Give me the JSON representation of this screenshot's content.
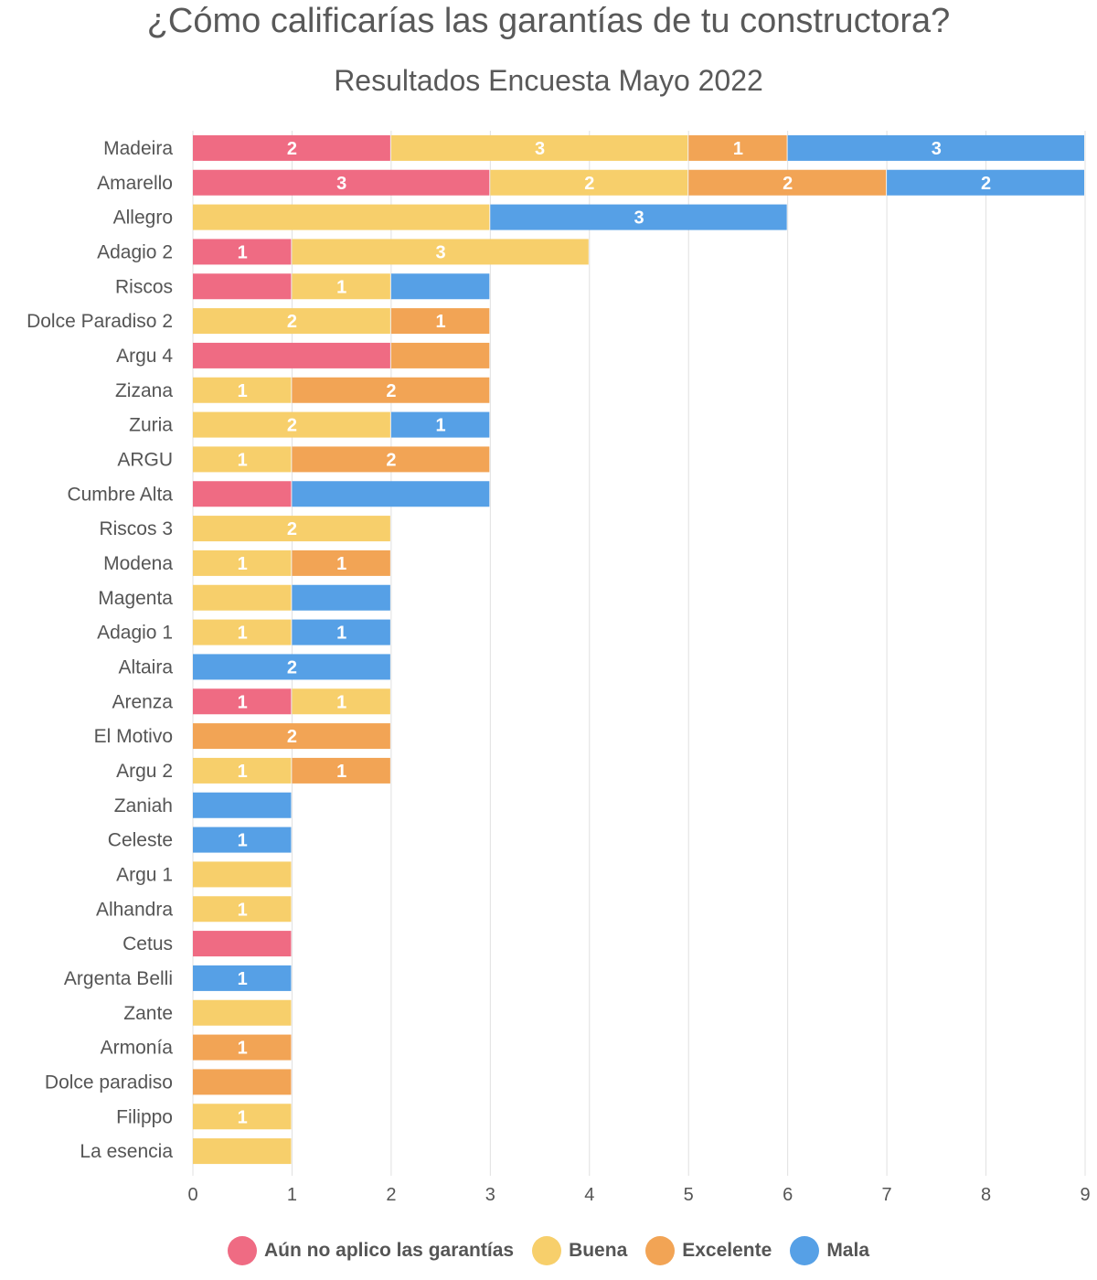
{
  "chart_data": {
    "type": "bar",
    "orientation": "horizontal",
    "stacked": true,
    "title": "¿Cómo calificarías las garantías de tu constructora?",
    "subtitle": "Resultados Encuesta Mayo 2022",
    "xlim": [
      0,
      9
    ],
    "x_ticks": [
      "0",
      "1",
      "2",
      "3",
      "4",
      "5",
      "6",
      "7",
      "8",
      "9"
    ],
    "grid": true,
    "legend_position": "bottom",
    "categories": [
      "Madeira",
      "Amarello",
      "Allegro",
      "Adagio 2",
      "Riscos",
      "Dolce Paradiso 2",
      "Argu 4",
      "Zizana",
      "Zuria",
      "ARGU",
      "Cumbre Alta",
      "Riscos 3",
      "Modena",
      "Magenta",
      "Adagio 1",
      "Altaira",
      "Arenza",
      "El Motivo",
      "Argu 2",
      "Zaniah",
      "Celeste",
      "Argu 1",
      "Alhandra",
      "Cetus",
      "Argenta Belli",
      "Zante",
      "Armonía",
      "Dolce paradiso",
      "Filippo",
      "La esencia"
    ],
    "series": [
      {
        "name": "Aún no aplico las garantías",
        "color": "#ef6b83",
        "values": [
          2,
          3,
          0,
          1,
          1,
          0,
          2,
          0,
          0,
          0,
          1,
          0,
          0,
          0,
          0,
          0,
          1,
          0,
          0,
          0,
          0,
          0,
          0,
          1,
          0,
          0,
          0,
          0,
          0,
          0
        ]
      },
      {
        "name": "Buena",
        "color": "#f7cf6b",
        "values": [
          3,
          2,
          3,
          3,
          1,
          2,
          0,
          1,
          2,
          1,
          0,
          2,
          1,
          1,
          1,
          0,
          1,
          0,
          1,
          0,
          0,
          1,
          1,
          0,
          0,
          1,
          0,
          0,
          1,
          1
        ]
      },
      {
        "name": "Excelente",
        "color": "#f2a455",
        "values": [
          1,
          2,
          0,
          0,
          0,
          1,
          1,
          2,
          0,
          2,
          0,
          0,
          1,
          0,
          0,
          0,
          0,
          2,
          1,
          0,
          0,
          0,
          0,
          0,
          0,
          0,
          1,
          1,
          0,
          0
        ]
      },
      {
        "name": "Mala",
        "color": "#56a0e6",
        "values": [
          3,
          2,
          3,
          0,
          1,
          0,
          0,
          0,
          1,
          0,
          2,
          0,
          0,
          1,
          1,
          2,
          0,
          0,
          0,
          1,
          1,
          0,
          0,
          0,
          1,
          0,
          0,
          0,
          0,
          0
        ]
      }
    ],
    "shown_labels": [
      [
        "2",
        "3",
        "",
        "1",
        "",
        "",
        "",
        "",
        "",
        "",
        "",
        "",
        "",
        "",
        "",
        "",
        "1",
        "",
        "",
        "",
        "",
        "",
        "",
        "",
        "",
        "",
        "",
        "",
        "",
        ""
      ],
      [
        "3",
        "2",
        "",
        "3",
        "1",
        "2",
        "",
        "1",
        "2",
        "1",
        "",
        "2",
        "1",
        "",
        "1",
        "",
        "1",
        "",
        "1",
        "",
        "",
        "",
        "1",
        "",
        "",
        "",
        "",
        "",
        "1",
        ""
      ],
      [
        "1",
        "2",
        "",
        "",
        "",
        "1",
        "",
        "2",
        "",
        "2",
        "",
        "",
        "1",
        "",
        "",
        "",
        "",
        "2",
        "1",
        "",
        "",
        "",
        "",
        "",
        "",
        "",
        "1",
        "",
        "",
        ""
      ],
      [
        "3",
        "2",
        "3",
        "",
        "",
        "",
        "",
        "",
        "1",
        "",
        "",
        "",
        "",
        "",
        "1",
        "2",
        "",
        "",
        "",
        "",
        "1",
        "",
        "",
        "",
        "1",
        "",
        "",
        "",
        "",
        ""
      ]
    ]
  }
}
